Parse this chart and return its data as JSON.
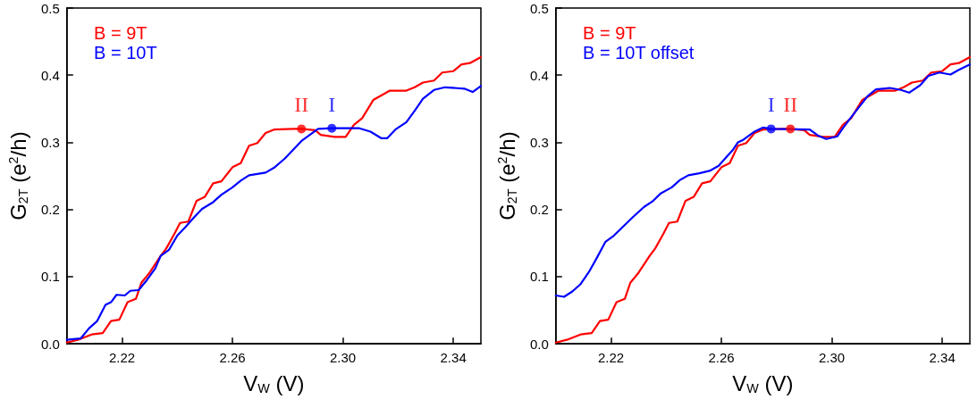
{
  "chart_data": [
    {
      "type": "line",
      "xlabel": "V$_{W}$ (V)",
      "ylabel": "G$_{2T}$ (e$^{2}$/h)",
      "xlim": [
        2.2,
        2.35
      ],
      "ylim": [
        0,
        0.5
      ],
      "xticks": [
        2.22,
        2.26,
        {
          "value": 2.3,
          "label": "2.30"
        },
        2.34
      ],
      "yticks": [
        {
          "value": 0,
          "label": "0.0"
        },
        0.1,
        0.2,
        0.3,
        0.4,
        0.5
      ],
      "grid": false,
      "legend": "top left",
      "marker": "none",
      "line_style": "solid",
      "series": [
        {
          "name": "B = 9T",
          "color": "#ff0000",
          "x": [
            2.2,
            2.204,
            2.209,
            2.213,
            2.216,
            2.219,
            2.222,
            2.225,
            2.227,
            2.23,
            2.234,
            2.236,
            2.239,
            2.241,
            2.244,
            2.247,
            2.25,
            2.253,
            2.256,
            2.26,
            2.263,
            2.266,
            2.269,
            2.272,
            2.275,
            2.282,
            2.285,
            2.29,
            2.292,
            2.297,
            2.301,
            2.304,
            2.307,
            2.311,
            2.314,
            2.317,
            2.323,
            2.326,
            2.329,
            2.333,
            2.336,
            2.34,
            2.343,
            2.346,
            2.35
          ],
          "values": [
            0.002,
            0.006,
            0.014,
            0.016,
            0.034,
            0.036,
            0.062,
            0.067,
            0.091,
            0.106,
            0.131,
            0.142,
            0.164,
            0.18,
            0.182,
            0.213,
            0.219,
            0.239,
            0.242,
            0.263,
            0.269,
            0.295,
            0.299,
            0.314,
            0.319,
            0.32,
            0.32,
            0.318,
            0.311,
            0.308,
            0.308,
            0.326,
            0.336,
            0.363,
            0.37,
            0.377,
            0.377,
            0.382,
            0.389,
            0.392,
            0.404,
            0.406,
            0.416,
            0.418,
            0.427
          ]
        },
        {
          "name": "B = 10T",
          "color": "#0000ff",
          "x": [
            2.2,
            2.205,
            2.208,
            2.211,
            2.214,
            2.216,
            2.218,
            2.221,
            2.223,
            2.226,
            2.229,
            2.232,
            2.234,
            2.237,
            2.24,
            2.243,
            2.246,
            2.249,
            2.253,
            2.256,
            2.26,
            2.263,
            2.266,
            2.272,
            2.275,
            2.279,
            2.282,
            2.285,
            2.289,
            2.291,
            2.296,
            2.306,
            2.31,
            2.314,
            2.316,
            2.319,
            2.323,
            2.326,
            2.329,
            2.333,
            2.337,
            2.344,
            2.347,
            2.35
          ],
          "values": [
            0.006,
            0.008,
            0.023,
            0.034,
            0.058,
            0.062,
            0.073,
            0.072,
            0.079,
            0.08,
            0.095,
            0.112,
            0.131,
            0.14,
            0.161,
            0.174,
            0.188,
            0.201,
            0.211,
            0.222,
            0.233,
            0.243,
            0.251,
            0.255,
            0.262,
            0.276,
            0.289,
            0.302,
            0.314,
            0.32,
            0.321,
            0.321,
            0.316,
            0.306,
            0.306,
            0.319,
            0.33,
            0.347,
            0.365,
            0.378,
            0.382,
            0.38,
            0.375,
            0.384
          ]
        },
        {
          "type": "scatter",
          "marker": "circle",
          "color": "#ff0000",
          "x": [
            2.285
          ],
          "values": [
            0.32
          ],
          "value_labels": [
            "II"
          ]
        },
        {
          "type": "scatter",
          "marker": "circle",
          "color": "#0000ff",
          "x": [
            2.296
          ],
          "values": [
            0.321
          ],
          "value_labels": [
            "I"
          ]
        }
      ]
    },
    {
      "type": "line",
      "xlabel": "V$_{W}$ (V)",
      "ylabel": "G$_{2T}$ (e$^{2}$/h)",
      "xlim": [
        2.2,
        2.35
      ],
      "ylim": [
        0,
        0.5
      ],
      "xticks": [
        2.22,
        2.26,
        {
          "value": 2.3,
          "label": "2.30"
        },
        2.34
      ],
      "yticks": [
        {
          "value": 0,
          "label": "0.0"
        },
        0.1,
        0.2,
        0.3,
        0.4,
        0.5
      ],
      "grid": false,
      "legend": "top left",
      "marker": "none",
      "line_style": "solid",
      "series": [
        {
          "name": "B = 9T",
          "color": "#ff0000",
          "x": [
            2.2,
            2.204,
            2.209,
            2.213,
            2.216,
            2.219,
            2.222,
            2.225,
            2.227,
            2.23,
            2.234,
            2.236,
            2.239,
            2.241,
            2.244,
            2.247,
            2.25,
            2.253,
            2.256,
            2.26,
            2.263,
            2.266,
            2.269,
            2.272,
            2.275,
            2.282,
            2.285,
            2.29,
            2.292,
            2.297,
            2.301,
            2.304,
            2.307,
            2.311,
            2.314,
            2.317,
            2.323,
            2.326,
            2.329,
            2.333,
            2.336,
            2.34,
            2.343,
            2.346,
            2.35
          ],
          "values": [
            0.002,
            0.006,
            0.014,
            0.016,
            0.034,
            0.036,
            0.062,
            0.067,
            0.091,
            0.106,
            0.131,
            0.142,
            0.164,
            0.18,
            0.182,
            0.213,
            0.219,
            0.239,
            0.242,
            0.263,
            0.269,
            0.295,
            0.299,
            0.314,
            0.319,
            0.32,
            0.32,
            0.318,
            0.311,
            0.308,
            0.308,
            0.326,
            0.336,
            0.363,
            0.37,
            0.377,
            0.377,
            0.382,
            0.389,
            0.392,
            0.404,
            0.406,
            0.416,
            0.418,
            0.427
          ]
        },
        {
          "name": "B = 10T offset",
          "color": "#0000ff",
          "x": [
            2.2,
            2.203,
            2.206,
            2.209,
            2.212,
            2.215,
            2.218,
            2.221,
            2.224,
            2.228,
            2.232,
            2.235,
            2.238,
            2.242,
            2.245,
            2.248,
            2.252,
            2.256,
            2.259,
            2.262,
            2.264,
            2.266,
            2.268,
            2.272,
            2.275,
            2.278,
            2.292,
            2.295,
            2.298,
            2.302,
            2.304,
            2.306,
            2.309,
            2.313,
            2.316,
            2.321,
            2.325,
            2.328,
            2.332,
            2.335,
            2.339,
            2.343,
            2.346,
            2.35
          ],
          "values": [
            0.072,
            0.07,
            0.078,
            0.089,
            0.107,
            0.129,
            0.152,
            0.161,
            0.173,
            0.189,
            0.204,
            0.212,
            0.224,
            0.233,
            0.244,
            0.251,
            0.254,
            0.258,
            0.265,
            0.279,
            0.288,
            0.3,
            0.304,
            0.316,
            0.322,
            0.32,
            0.319,
            0.31,
            0.305,
            0.309,
            0.321,
            0.332,
            0.348,
            0.369,
            0.379,
            0.381,
            0.378,
            0.374,
            0.385,
            0.399,
            0.404,
            0.401,
            0.408,
            0.416
          ]
        },
        {
          "type": "scatter",
          "marker": "circle",
          "color": "#0000ff",
          "x": [
            2.278
          ],
          "values": [
            0.32
          ],
          "value_labels": [
            "I"
          ]
        },
        {
          "type": "scatter",
          "marker": "circle",
          "color": "#ff0000",
          "x": [
            2.285
          ],
          "values": [
            0.32
          ],
          "value_labels": [
            "II"
          ]
        }
      ]
    }
  ]
}
